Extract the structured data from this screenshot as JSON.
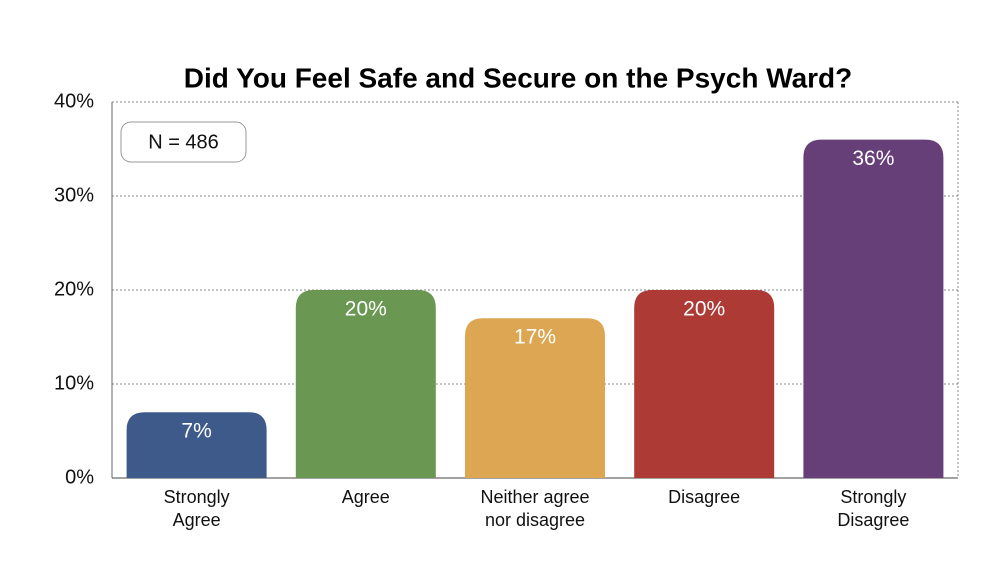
{
  "chart_data": {
    "type": "bar",
    "title": "Did You Feel Safe and Secure on the Psych Ward?",
    "annotation": "N = 486",
    "categories": [
      "Strongly Agree",
      "Agree",
      "Neither agree nor disagree",
      "Disagree",
      "Strongly Disagree"
    ],
    "values": [
      7,
      20,
      17,
      20,
      36
    ],
    "value_labels": [
      "7%",
      "20%",
      "17%",
      "20%",
      "36%"
    ],
    "colors": [
      "#3d5a8a",
      "#6a9852",
      "#dca652",
      "#ae3a36",
      "#673f78"
    ],
    "ylim": [
      0,
      40
    ],
    "yticks": [
      {
        "value": 0,
        "label": "0%"
      },
      {
        "value": 10,
        "label": "10%"
      },
      {
        "value": 20,
        "label": "20%"
      },
      {
        "value": 30,
        "label": "30%"
      },
      {
        "value": 40,
        "label": "40%"
      }
    ],
    "grid": true
  }
}
